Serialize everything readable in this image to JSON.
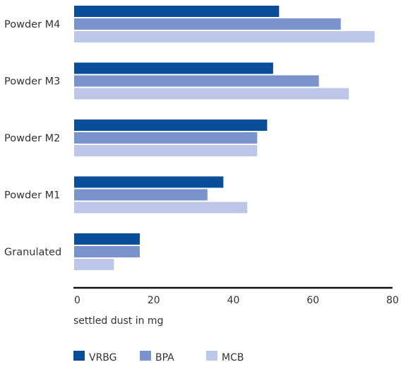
{
  "chart_data": {
    "type": "bar",
    "orientation": "horizontal",
    "categories": [
      "Powder M4",
      "Powder M3",
      "Powder M2",
      "Powder M1",
      "Granulated"
    ],
    "series": [
      {
        "name": "VRBG",
        "color": "#0a4d99",
        "values": [
          51.5,
          50,
          48.5,
          37.5,
          16.5
        ]
      },
      {
        "name": "BPA",
        "color": "#7b93cc",
        "values": [
          67,
          61.5,
          46,
          33.5,
          16.5
        ]
      },
      {
        "name": "MCB",
        "color": "#bcc6e6",
        "values": [
          75.5,
          69,
          46,
          43.5,
          10
        ]
      }
    ],
    "xlabel": "settled dust in mg",
    "xlim": [
      0,
      80
    ],
    "xticks": [
      0,
      20,
      40,
      60,
      80
    ],
    "grid": false,
    "legend_position": "bottom-left"
  }
}
